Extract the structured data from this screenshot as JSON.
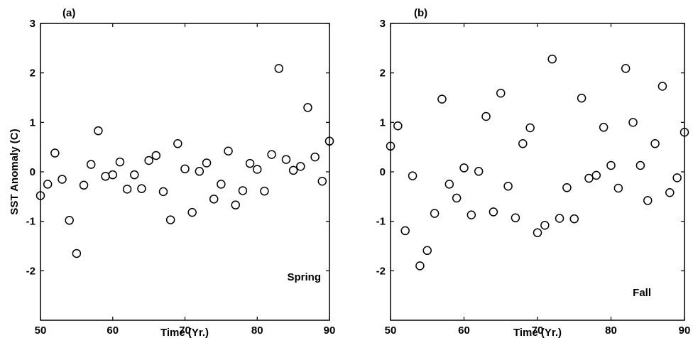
{
  "chart_data": [
    {
      "type": "scatter",
      "panel_label": "(a)",
      "annotation": "Spring",
      "xlabel": "Time (Yr.)",
      "ylabel": "SST Anomaly (C)",
      "xlim": [
        50,
        90
      ],
      "ylim": [
        -3,
        3
      ],
      "xticks": [
        50,
        60,
        70,
        80,
        90
      ],
      "yticks": [
        -2,
        -1,
        0,
        1,
        2,
        3
      ],
      "grid": false,
      "marker": "open-circle",
      "color": "#000000",
      "x": [
        50,
        51,
        52,
        53,
        54,
        55,
        56,
        57,
        58,
        59,
        60,
        61,
        62,
        63,
        64,
        65,
        66,
        67,
        68,
        69,
        70,
        71,
        72,
        73,
        74,
        75,
        76,
        77,
        78,
        79,
        80,
        81,
        82,
        83,
        84,
        85,
        86,
        87,
        88,
        89,
        90
      ],
      "y": [
        -0.48,
        -0.25,
        0.38,
        -0.15,
        -0.98,
        -1.65,
        -0.27,
        0.15,
        0.83,
        -0.09,
        -0.06,
        0.2,
        -0.35,
        -0.06,
        -0.34,
        0.23,
        0.33,
        -0.4,
        -0.97,
        0.57,
        0.06,
        -0.82,
        0.01,
        0.18,
        -0.55,
        -0.25,
        0.42,
        -0.67,
        -0.38,
        0.17,
        0.05,
        -0.39,
        0.35,
        2.09,
        0.25,
        0.03,
        0.11,
        1.3,
        0.3,
        -0.19,
        0.62
      ]
    },
    {
      "type": "scatter",
      "panel_label": "(b)",
      "annotation": "Fall",
      "xlabel": "Time (Yr.)",
      "ylabel": "",
      "xlim": [
        50,
        90
      ],
      "ylim": [
        -3,
        3
      ],
      "xticks": [
        50,
        60,
        70,
        80,
        90
      ],
      "yticks": [
        -2,
        -1,
        0,
        1,
        2,
        3
      ],
      "grid": false,
      "marker": "open-circle",
      "color": "#000000",
      "x": [
        50,
        51,
        52,
        53,
        54,
        55,
        56,
        57,
        58,
        59,
        60,
        61,
        62,
        63,
        64,
        65,
        66,
        67,
        68,
        69,
        70,
        71,
        72,
        73,
        74,
        75,
        76,
        77,
        78,
        79,
        80,
        81,
        82,
        83,
        84,
        85,
        86,
        87,
        88,
        89,
        90
      ],
      "y": [
        0.52,
        0.93,
        -1.19,
        -0.08,
        -1.9,
        -1.59,
        -0.84,
        1.47,
        -0.25,
        -0.53,
        0.08,
        -0.87,
        0.01,
        1.12,
        -0.81,
        1.59,
        -0.29,
        -0.93,
        0.57,
        0.89,
        -1.23,
        -1.08,
        2.28,
        -0.94,
        -0.32,
        -0.95,
        1.49,
        -0.13,
        -0.07,
        0.9,
        0.13,
        -0.33,
        2.09,
        1.0,
        0.13,
        -0.58,
        0.57,
        1.73,
        -0.42,
        -0.12,
        0.8
      ]
    }
  ]
}
